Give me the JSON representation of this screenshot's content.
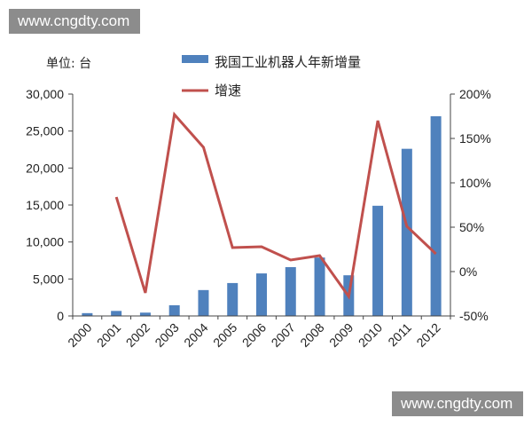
{
  "watermarks": {
    "top": "www.cngdty.com",
    "bottom": "www.cngdty.com"
  },
  "chart_data": {
    "type": "bar+line",
    "unit_label": "单位: 台",
    "categories": [
      "2000",
      "2001",
      "2002",
      "2003",
      "2004",
      "2005",
      "2006",
      "2007",
      "2008",
      "2009",
      "2010",
      "2011",
      "2012"
    ],
    "series": [
      {
        "name": "我国工业机器人年新增量",
        "type": "bar",
        "axis": "left",
        "color": "#4f81bd",
        "values": [
          380,
          680,
          450,
          1450,
          3500,
          4450,
          5750,
          6600,
          7900,
          5500,
          14900,
          22600,
          27000
        ]
      },
      {
        "name": "增速",
        "type": "line",
        "axis": "right",
        "color": "#c0504d",
        "values": [
          null,
          84,
          -24,
          177,
          140,
          27,
          28,
          13,
          18,
          -28,
          170,
          51,
          20
        ]
      }
    ],
    "y_left": {
      "min": 0,
      "max": 30000,
      "ticks": [
        "0",
        "5,000",
        "10,000",
        "15,000",
        "20,000",
        "25,000",
        "30,000"
      ]
    },
    "y_right": {
      "min": -50,
      "max": 200,
      "ticks": [
        "-50%",
        "0%",
        "50%",
        "100%",
        "150%",
        "200%"
      ]
    },
    "grid": false,
    "legend_position": "top-right"
  }
}
